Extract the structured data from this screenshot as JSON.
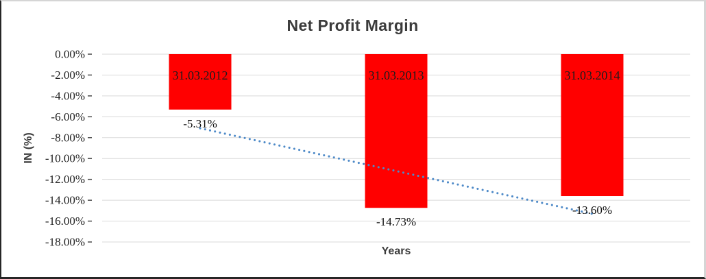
{
  "chart_data": {
    "type": "bar",
    "title": "Net Profit Margin",
    "xlabel": "Years",
    "ylabel": "IN (%)",
    "categories": [
      "31.03.2012",
      "31.03.2013",
      "31.03.2014"
    ],
    "values": [
      -5.31,
      -14.73,
      -13.6
    ],
    "data_labels": [
      "-5.31%",
      "-14.73%",
      "-13.60%"
    ],
    "ylim": [
      -18,
      0
    ],
    "ytick_step": 2,
    "ytick_labels": [
      "0.00%",
      "-2.00%",
      "-4.00%",
      "-6.00%",
      "-8.00%",
      "-10.00%",
      "-12.00%",
      "-14.00%",
      "-16.00%",
      "-18.00%"
    ],
    "grid": true,
    "legend": "none",
    "category_label_position": "inside-top-of-bar",
    "value_label_position": "below-bar",
    "trendline": {
      "type": "linear",
      "style": "dotted",
      "start_value": -7.1,
      "end_value": -15.3
    },
    "colors": {
      "bar": "#ff0000",
      "trendline": "#4e8ac8",
      "gridline": "#d9d9d9",
      "tick_mark": "#4a4a4a",
      "title_text": "#3b3b3b",
      "tick_text": "#1f1f1f",
      "bar_label_text": "#1c1c1c",
      "value_label_text": "#0d0d0d"
    }
  }
}
